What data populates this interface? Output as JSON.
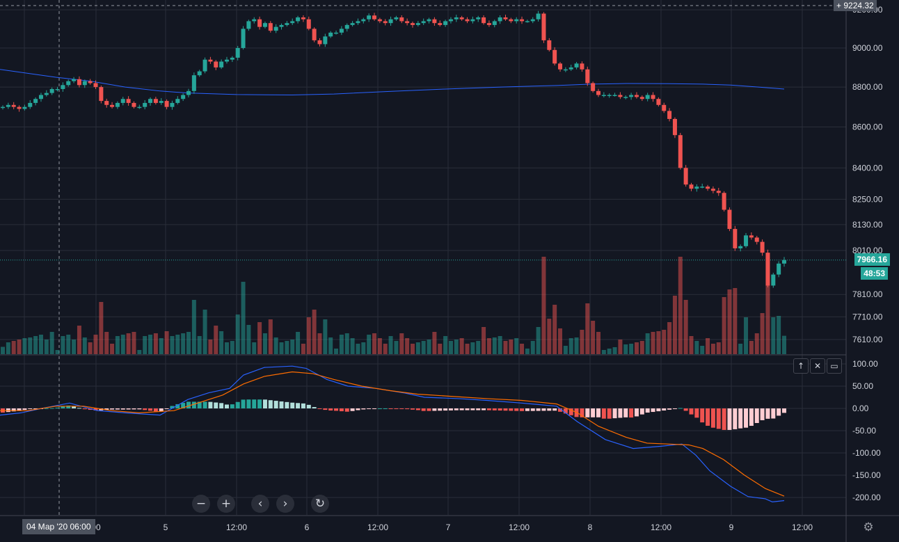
{
  "chart_data": {
    "type": "candlestick",
    "price_axis": {
      "ticks": [
        "9200.00",
        "9000.00",
        "8800.00",
        "8600.00",
        "8400.00",
        "8250.00",
        "8130.00",
        "8010.00",
        "7810.00",
        "7710.00",
        "7610.00"
      ],
      "scale": "log",
      "range": [
        7555,
        9240
      ]
    },
    "oscillator_axis": {
      "ticks": [
        "100.00",
        "50.00",
        "0.00",
        "-50.00",
        "-100.00",
        "-150.00",
        "-200.00"
      ],
      "range": [
        -230,
        110
      ]
    },
    "time_axis": {
      "ticks": [
        "00",
        "5",
        "12:00",
        "6",
        "12:00",
        "7",
        "12:00",
        "8",
        "12:00",
        "9",
        "12:00"
      ]
    },
    "crosshair_date_label": "04 Мар '20   06:00",
    "last_price_label": "7966.16",
    "countdown_label": "48:53",
    "crosshair_price_label": "9224.32",
    "last_price": 7966.16,
    "moving_average_color": "#2962ff",
    "up_color": "#26a69a",
    "down_color": "#ef5350",
    "candle_closes": [
      8700,
      8710,
      8700,
      8690,
      8700,
      8720,
      8740,
      8760,
      8770,
      8790,
      8790,
      8810,
      8830,
      8840,
      8810,
      8830,
      8820,
      8800,
      8730,
      8710,
      8700,
      8720,
      8740,
      8720,
      8700,
      8700,
      8720,
      8740,
      8720,
      8730,
      8700,
      8720,
      8740,
      8760,
      8780,
      8860,
      8880,
      8940,
      8930,
      8900,
      8930,
      8940,
      8950,
      9000,
      9100,
      9140,
      9150,
      9110,
      9130,
      9090,
      9110,
      9120,
      9130,
      9140,
      9160,
      9150,
      9100,
      9040,
      9020,
      9060,
      9080,
      9080,
      9100,
      9120,
      9130,
      9140,
      9150,
      9170,
      9150,
      9140,
      9130,
      9150,
      9160,
      9140,
      9130,
      9120,
      9130,
      9140,
      9150,
      9130,
      9120,
      9140,
      9150,
      9160,
      9150,
      9140,
      9150,
      9160,
      9130,
      9120,
      9140,
      9160,
      9150,
      9140,
      9150,
      9140,
      9140,
      9150,
      9180,
      9040,
      8990,
      8920,
      8890,
      8890,
      8900,
      8920,
      8890,
      8820,
      8780,
      8760,
      8760,
      8760,
      8760,
      8750,
      8750,
      8760,
      8750,
      8740,
      8760,
      8740,
      8710,
      8680,
      8640,
      8560,
      8400,
      8320,
      8300,
      8310,
      8310,
      8300,
      8290,
      8280,
      8200,
      8110,
      8020,
      8030,
      8080,
      8070,
      8050,
      8000,
      7850,
      7900,
      7950,
      7966
    ],
    "ma_points": [
      [
        0,
        8890
      ],
      [
        40,
        8870
      ],
      [
        80,
        8850
      ],
      [
        130,
        8830
      ],
      [
        180,
        8800
      ],
      [
        230,
        8780
      ],
      [
        270,
        8770
      ],
      [
        340,
        8762
      ],
      [
        420,
        8760
      ],
      [
        480,
        8765
      ],
      [
        560,
        8778
      ],
      [
        640,
        8790
      ],
      [
        720,
        8800
      ],
      [
        800,
        8808
      ],
      [
        850,
        8815
      ],
      [
        900,
        8818
      ],
      [
        960,
        8817
      ],
      [
        1010,
        8815
      ],
      [
        1050,
        8810
      ],
      [
        1090,
        8800
      ],
      [
        1127,
        8790
      ]
    ],
    "macd_points": [
      [
        0,
        -15
      ],
      [
        30,
        -10
      ],
      [
        60,
        0
      ],
      [
        100,
        12
      ],
      [
        140,
        -5
      ],
      [
        180,
        -10
      ],
      [
        230,
        -15
      ],
      [
        270,
        20
      ],
      [
        300,
        35
      ],
      [
        330,
        45
      ],
      [
        350,
        75
      ],
      [
        380,
        92
      ],
      [
        420,
        95
      ],
      [
        440,
        90
      ],
      [
        470,
        65
      ],
      [
        500,
        50
      ],
      [
        540,
        45
      ],
      [
        580,
        35
      ],
      [
        610,
        25
      ],
      [
        660,
        22
      ],
      [
        700,
        18
      ],
      [
        750,
        12
      ],
      [
        800,
        5
      ],
      [
        830,
        -30
      ],
      [
        870,
        -70
      ],
      [
        910,
        -90
      ],
      [
        950,
        -85
      ],
      [
        980,
        -80
      ],
      [
        1000,
        -105
      ],
      [
        1020,
        -140
      ],
      [
        1050,
        -175
      ],
      [
        1075,
        -198
      ],
      [
        1100,
        -203
      ],
      [
        1110,
        -210
      ],
      [
        1127,
        -207
      ]
    ],
    "signal_points": [
      [
        0,
        -5
      ],
      [
        40,
        -5
      ],
      [
        80,
        5
      ],
      [
        120,
        5
      ],
      [
        160,
        -5
      ],
      [
        200,
        -10
      ],
      [
        250,
        -5
      ],
      [
        290,
        15
      ],
      [
        320,
        30
      ],
      [
        350,
        55
      ],
      [
        380,
        72
      ],
      [
        420,
        82
      ],
      [
        450,
        78
      ],
      [
        480,
        65
      ],
      [
        520,
        50
      ],
      [
        560,
        40
      ],
      [
        600,
        32
      ],
      [
        650,
        27
      ],
      [
        700,
        22
      ],
      [
        750,
        18
      ],
      [
        800,
        10
      ],
      [
        830,
        -10
      ],
      [
        860,
        -40
      ],
      [
        900,
        -65
      ],
      [
        930,
        -78
      ],
      [
        960,
        -80
      ],
      [
        990,
        -82
      ],
      [
        1010,
        -90
      ],
      [
        1040,
        -115
      ],
      [
        1070,
        -150
      ],
      [
        1100,
        -180
      ],
      [
        1127,
        -197
      ]
    ]
  },
  "controls": {
    "zoom_out_icon": "minus-icon",
    "zoom_in_icon": "plus-icon",
    "scroll_left_icon": "chevron-left-icon",
    "scroll_right_icon": "chevron-right-icon",
    "reset_icon": "reset-icon"
  },
  "pane_buttons": {
    "up_icon": "arrow-up-icon",
    "close_icon": "close-icon",
    "maximize_icon": "maximize-icon"
  },
  "settings_icon": "gear-icon"
}
